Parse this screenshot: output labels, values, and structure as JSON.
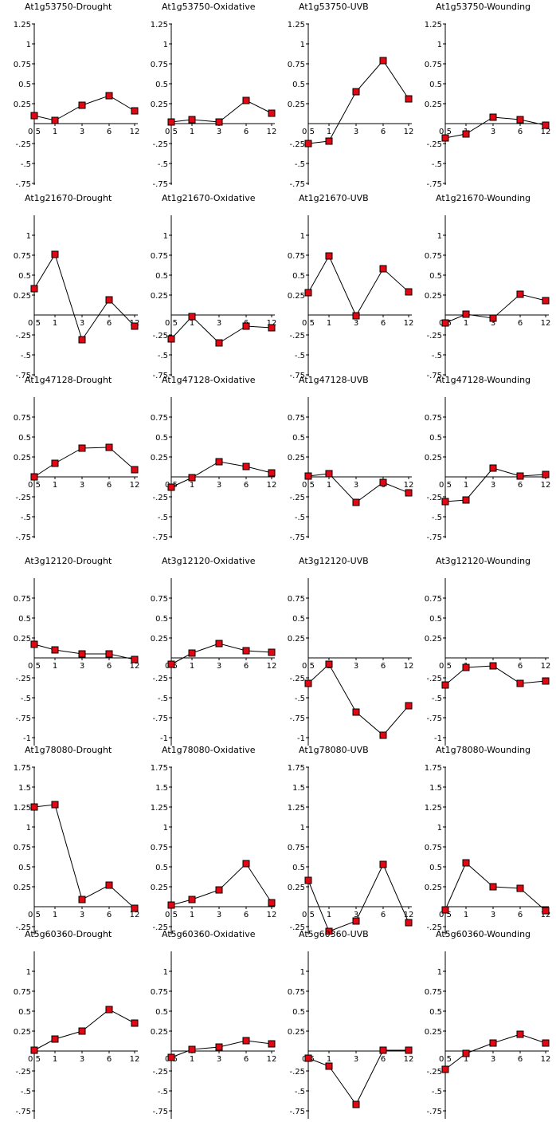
{
  "chart_data": [
    {
      "type": "line",
      "title": "At1g53750-Drought",
      "categories": [
        "0.5",
        "1",
        "3",
        "6",
        "12"
      ],
      "values": [
        0.1,
        0.04,
        0.23,
        0.35,
        0.16
      ],
      "yticks": [
        1.25,
        1,
        0.75,
        0.5,
        0.25,
        -0.25,
        -0.5,
        -0.75
      ],
      "ylim": [
        -0.75,
        1.25
      ]
    },
    {
      "type": "line",
      "title": "At1g53750-Oxidative",
      "categories": [
        "0.5",
        "1",
        "3",
        "6",
        "12"
      ],
      "values": [
        0.02,
        0.05,
        0.02,
        0.29,
        0.13
      ],
      "yticks": [
        1.25,
        1,
        0.75,
        0.5,
        0.25,
        -0.25,
        -0.5,
        -0.75
      ],
      "ylim": [
        -0.75,
        1.25
      ]
    },
    {
      "type": "line",
      "title": "At1g53750-UVB",
      "categories": [
        "0.5",
        "1",
        "3",
        "6",
        "12"
      ],
      "values": [
        -0.25,
        -0.22,
        0.4,
        0.79,
        0.31
      ],
      "yticks": [
        1.25,
        1,
        0.75,
        0.5,
        0.25,
        -0.25,
        -0.5,
        -0.75
      ],
      "ylim": [
        -0.75,
        1.25
      ]
    },
    {
      "type": "line",
      "title": "At1g53750-Wounding",
      "categories": [
        "0.5",
        "1",
        "3",
        "6",
        "12"
      ],
      "values": [
        -0.18,
        -0.13,
        0.08,
        0.05,
        -0.02
      ],
      "yticks": [
        1.25,
        1,
        0.75,
        0.5,
        0.25,
        -0.25,
        -0.5,
        -0.75
      ],
      "ylim": [
        -0.75,
        1.25
      ]
    },
    {
      "type": "line",
      "title": "At1g21670-Drought",
      "categories": [
        "0.5",
        "1",
        "3",
        "6",
        "12"
      ],
      "values": [
        0.33,
        0.76,
        -0.31,
        0.19,
        -0.14
      ],
      "yticks": [
        1,
        0.75,
        0.5,
        0.25,
        -0.25,
        -0.5,
        -0.75
      ],
      "ylim": [
        -0.75,
        1.25
      ]
    },
    {
      "type": "line",
      "title": "At1g21670-Oxidative",
      "categories": [
        "0.5",
        "1",
        "3",
        "6",
        "12"
      ],
      "values": [
        -0.3,
        -0.02,
        -0.35,
        -0.14,
        -0.16
      ],
      "yticks": [
        1,
        0.75,
        0.5,
        0.25,
        -0.25,
        -0.5,
        -0.75
      ],
      "ylim": [
        -0.75,
        1.25
      ]
    },
    {
      "type": "line",
      "title": "At1g21670-UVB",
      "categories": [
        "0.5",
        "1",
        "3",
        "6",
        "12"
      ],
      "values": [
        0.28,
        0.74,
        -0.01,
        0.58,
        0.29
      ],
      "yticks": [
        1,
        0.75,
        0.5,
        0.25,
        -0.25,
        -0.5,
        -0.75
      ],
      "ylim": [
        -0.75,
        1.25
      ]
    },
    {
      "type": "line",
      "title": "At1g21670-Wounding",
      "categories": [
        "0.5",
        "1",
        "3",
        "6",
        "12"
      ],
      "values": [
        -0.1,
        0.01,
        -0.04,
        0.26,
        0.18
      ],
      "yticks": [
        1,
        0.75,
        0.5,
        0.25,
        -0.25,
        -0.5,
        -0.75
      ],
      "ylim": [
        -0.75,
        1.25
      ]
    },
    {
      "type": "line",
      "title": "At1g47128-Drought",
      "categories": [
        "0.5",
        "1",
        "3",
        "6",
        "12"
      ],
      "values": [
        0,
        0.17,
        0.36,
        0.37,
        0.09
      ],
      "yticks": [
        0.75,
        0.5,
        0.25,
        -0.25,
        -0.5,
        -0.75
      ],
      "ylim": [
        -0.75,
        1
      ]
    },
    {
      "type": "line",
      "title": "At1g47128-Oxidative",
      "categories": [
        "0.5",
        "1",
        "3",
        "6",
        "12"
      ],
      "values": [
        -0.13,
        -0.01,
        0.19,
        0.13,
        0.05
      ],
      "yticks": [
        0.75,
        0.5,
        0.25,
        -0.25,
        -0.5,
        -0.75
      ],
      "ylim": [
        -0.75,
        1
      ]
    },
    {
      "type": "line",
      "title": "At1g47128-UVB",
      "categories": [
        "0.5",
        "1",
        "3",
        "6",
        "12"
      ],
      "values": [
        0.01,
        0.04,
        -0.32,
        -0.07,
        -0.2
      ],
      "yticks": [
        0.75,
        0.5,
        0.25,
        -0.25,
        -0.5,
        -0.75
      ],
      "ylim": [
        -0.75,
        1
      ]
    },
    {
      "type": "line",
      "title": "At1g47128-Wounding",
      "categories": [
        "0.5",
        "1",
        "3",
        "6",
        "12"
      ],
      "values": [
        -0.31,
        -0.29,
        0.11,
        0.01,
        0.03
      ],
      "yticks": [
        0.75,
        0.5,
        0.25,
        -0.25,
        -0.5,
        -0.75
      ],
      "ylim": [
        -0.75,
        1
      ]
    },
    {
      "type": "line",
      "title": "At3g12120-Drought",
      "categories": [
        "0.5",
        "1",
        "3",
        "6",
        "12"
      ],
      "values": [
        0.17,
        0.1,
        0.05,
        0.05,
        -0.02
      ],
      "yticks": [
        0.75,
        0.5,
        0.25,
        -0.25,
        -0.5,
        -0.75,
        -1,
        -1.25
      ],
      "ylim": [
        -1.5,
        1
      ]
    },
    {
      "type": "line",
      "title": "At3g12120-Oxidative",
      "categories": [
        "0.5",
        "1",
        "3",
        "6",
        "12"
      ],
      "values": [
        -0.08,
        0.06,
        0.18,
        0.09,
        0.07
      ],
      "yticks": [
        0.75,
        0.5,
        0.25,
        -0.25,
        -0.5,
        -0.75,
        -1,
        -1.25
      ],
      "ylim": [
        -1.5,
        1
      ]
    },
    {
      "type": "line",
      "title": "At3g12120-UVB",
      "categories": [
        "0.5",
        "1",
        "3",
        "6",
        "12"
      ],
      "values": [
        -0.32,
        -0.08,
        -0.68,
        -0.97,
        -0.6
      ],
      "yticks": [
        0.75,
        0.5,
        0.25,
        -0.25,
        -0.5,
        -0.75,
        -1,
        -1.25
      ],
      "ylim": [
        -1.5,
        1
      ]
    },
    {
      "type": "line",
      "title": "At3g12120-Wounding",
      "categories": [
        "0.5",
        "1",
        "3",
        "6",
        "12"
      ],
      "values": [
        -0.34,
        -0.12,
        -0.1,
        -0.32,
        -0.29
      ],
      "yticks": [
        0.75,
        0.5,
        0.25,
        -0.25,
        -0.5,
        -0.75,
        -1,
        -1.25
      ],
      "ylim": [
        -1.5,
        1
      ]
    },
    {
      "type": "line",
      "title": "At1g78080-Drought",
      "categories": [
        "0.5",
        "1",
        "3",
        "6",
        "12"
      ],
      "values": [
        1.25,
        1.28,
        0.09,
        0.27,
        -0.02
      ],
      "yticks": [
        1.75,
        1.5,
        1.25,
        1,
        0.75,
        0.5,
        0.25,
        -0.25,
        -0.5,
        -0.75
      ],
      "ylim": [
        -0.75,
        1.75
      ]
    },
    {
      "type": "line",
      "title": "At1g78080-Oxidative",
      "categories": [
        "0.5",
        "1",
        "3",
        "6",
        "12"
      ],
      "values": [
        0.02,
        0.09,
        0.21,
        0.54,
        0.05
      ],
      "yticks": [
        1.75,
        1.5,
        1.25,
        1,
        0.75,
        0.5,
        0.25,
        -0.25,
        -0.5,
        -0.75
      ],
      "ylim": [
        -0.75,
        1.75
      ]
    },
    {
      "type": "line",
      "title": "At1g78080-UVB",
      "categories": [
        "0.5",
        "1",
        "3",
        "6",
        "12"
      ],
      "values": [
        0.33,
        -0.31,
        -0.18,
        0.53,
        -0.2
      ],
      "yticks": [
        1.75,
        1.5,
        1.25,
        1,
        0.75,
        0.5,
        0.25,
        -0.25,
        -0.5,
        -0.75
      ],
      "ylim": [
        -0.75,
        1.75
      ]
    },
    {
      "type": "line",
      "title": "At1g78080-Wounding",
      "categories": [
        "0.5",
        "1",
        "3",
        "6",
        "12"
      ],
      "values": [
        -0.04,
        0.55,
        0.25,
        0.23,
        -0.05
      ],
      "yticks": [
        1.75,
        1.5,
        1.25,
        1,
        0.75,
        0.5,
        0.25,
        -0.25,
        -0.5,
        -0.75
      ],
      "ylim": [
        -0.75,
        1.75
      ]
    },
    {
      "type": "line",
      "title": "At5g60360-Drought",
      "categories": [
        "0.5",
        "1",
        "3",
        "6",
        "12"
      ],
      "values": [
        0.01,
        0.15,
        0.25,
        0.52,
        0.35
      ],
      "yticks": [
        1,
        0.75,
        0.5,
        0.25,
        -0.25,
        -0.5,
        -0.75,
        -1
      ],
      "ylim": [
        -1.25,
        1.25
      ]
    },
    {
      "type": "line",
      "title": "At5g60360-Oxidative",
      "categories": [
        "0.5",
        "1",
        "3",
        "6",
        "12"
      ],
      "values": [
        -0.08,
        0.02,
        0.05,
        0.13,
        0.09
      ],
      "yticks": [
        1,
        0.75,
        0.5,
        0.25,
        -0.25,
        -0.5,
        -0.75,
        -1
      ],
      "ylim": [
        -1.25,
        1.25
      ]
    },
    {
      "type": "line",
      "title": "At5g60360-UVB",
      "categories": [
        "0.5",
        "1",
        "3",
        "6",
        "12"
      ],
      "values": [
        -0.09,
        -0.19,
        -0.67,
        0.01,
        0.01
      ],
      "yticks": [
        1,
        0.75,
        0.5,
        0.25,
        -0.25,
        -0.5,
        -0.75,
        -1
      ],
      "ylim": [
        -1.25,
        1.25
      ]
    },
    {
      "type": "line",
      "title": "At5g60360-Wounding",
      "categories": [
        "0.5",
        "1",
        "3",
        "6",
        "12"
      ],
      "values": [
        -0.23,
        -0.03,
        0.1,
        0.21,
        0.1
      ],
      "yticks": [
        1,
        0.75,
        0.5,
        0.25,
        -0.25,
        -0.5,
        -0.75,
        -1
      ],
      "ylim": [
        -1.25,
        1.25
      ]
    }
  ]
}
